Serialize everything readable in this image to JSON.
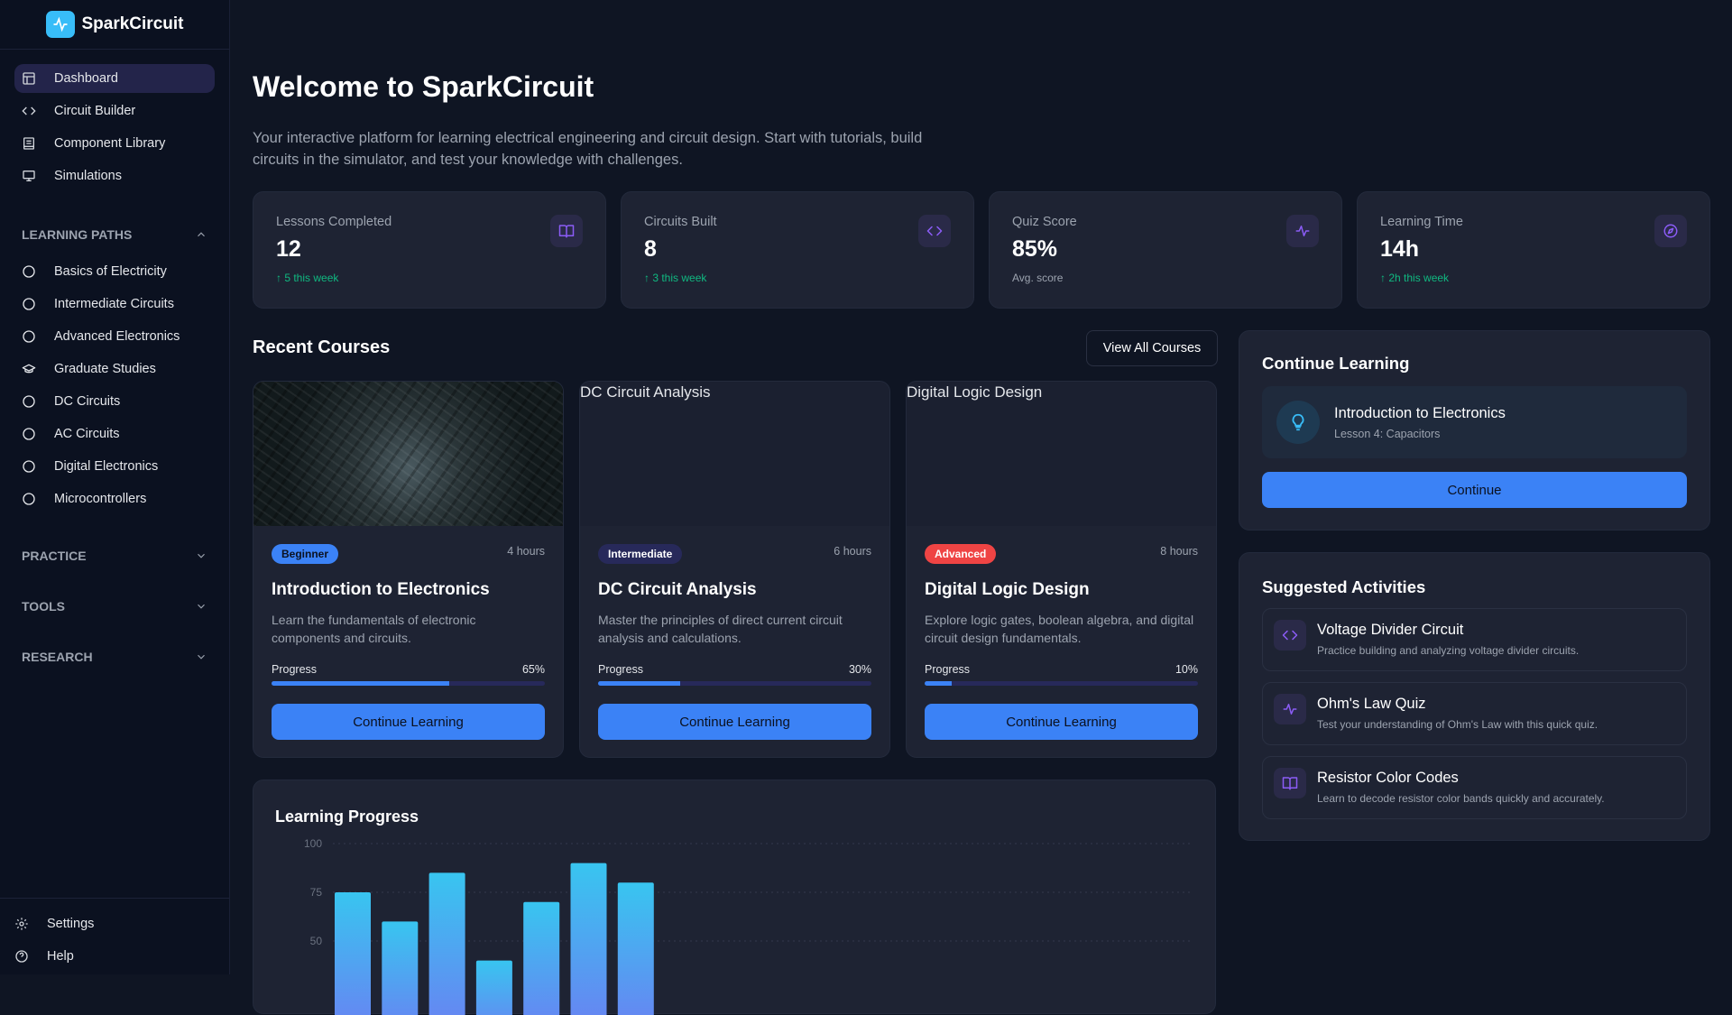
{
  "app": {
    "name": "SparkCircuit"
  },
  "sidebar": {
    "nav": [
      {
        "label": "Dashboard",
        "icon": "layout-icon",
        "active": true
      },
      {
        "label": "Circuit Builder",
        "icon": "code-icon"
      },
      {
        "label": "Component Library",
        "icon": "book-icon"
      },
      {
        "label": "Simulations",
        "icon": "monitor-icon"
      }
    ],
    "learning_paths": {
      "title": "LEARNING PATHS",
      "expanded": true,
      "items": [
        {
          "label": "Basics of Electricity",
          "icon": "circle-icon"
        },
        {
          "label": "Intermediate Circuits",
          "icon": "circle-icon"
        },
        {
          "label": "Advanced Electronics",
          "icon": "circle-icon"
        },
        {
          "label": "Graduate Studies",
          "icon": "graduation-cap-icon"
        },
        {
          "label": "DC Circuits",
          "icon": "circle-icon"
        },
        {
          "label": "AC Circuits",
          "icon": "circle-icon"
        },
        {
          "label": "Digital Electronics",
          "icon": "circle-icon"
        },
        {
          "label": "Microcontrollers",
          "icon": "circle-icon"
        }
      ]
    },
    "sections": [
      {
        "title": "PRACTICE",
        "expanded": false
      },
      {
        "title": "TOOLS",
        "expanded": false
      },
      {
        "title": "RESEARCH",
        "expanded": false
      }
    ],
    "bottom": [
      {
        "label": "Settings",
        "icon": "gear-icon"
      },
      {
        "label": "Help",
        "icon": "help-circle-icon"
      }
    ]
  },
  "header": {
    "title": "Welcome to SparkCircuit",
    "description": "Your interactive platform for learning electrical engineering and circuit design. Start with tutorials, build circuits in the simulator, and test your knowledge with challenges."
  },
  "stats": [
    {
      "label": "Lessons Completed",
      "value": "12",
      "trend": "5 this week",
      "trend_up": true,
      "icon": "book-open-icon"
    },
    {
      "label": "Circuits Built",
      "value": "8",
      "trend": "3 this week",
      "trend_up": true,
      "icon": "code-icon"
    },
    {
      "label": "Quiz Score",
      "value": "85%",
      "trend": "Avg. score",
      "trend_up": false,
      "icon": "activity-icon"
    },
    {
      "label": "Learning Time",
      "value": "14h",
      "trend": "2h this week",
      "trend_up": true,
      "icon": "compass-icon"
    }
  ],
  "recent_courses": {
    "title": "Recent Courses",
    "view_all": "View All Courses",
    "courses": [
      {
        "image_alt": "Introduction to Electronics",
        "level": "Beginner",
        "level_color": "#3b82f6",
        "level_text_color": "#0b1120",
        "duration": "4 hours",
        "title": "Introduction to Electronics",
        "description": "Learn the fundamentals of electronic components and circuits.",
        "progress_label": "Progress",
        "progress": 65,
        "progress_text": "65%",
        "button": "Continue Learning"
      },
      {
        "image_alt": "DC Circuit Analysis",
        "level": "Intermediate",
        "level_color": "#27295a",
        "level_text_color": "#ffffff",
        "duration": "6 hours",
        "title": "DC Circuit Analysis",
        "description": "Master the principles of direct current circuit analysis and calculations.",
        "progress_label": "Progress",
        "progress": 30,
        "progress_text": "30%",
        "button": "Continue Learning"
      },
      {
        "image_alt": "Digital Logic Design",
        "level": "Advanced",
        "level_color": "#ef4444",
        "level_text_color": "#ffffff",
        "duration": "8 hours",
        "title": "Digital Logic Design",
        "description": "Explore logic gates, boolean algebra, and digital circuit design fundamentals.",
        "progress_label": "Progress",
        "progress": 10,
        "progress_text": "10%",
        "button": "Continue Learning"
      }
    ]
  },
  "continue_learning": {
    "title": "Continue Learning",
    "course": "Introduction to Electronics",
    "lesson": "Lesson 4: Capacitors",
    "icon": "lightbulb-icon",
    "button": "Continue"
  },
  "suggested": {
    "title": "Suggested Activities",
    "items": [
      {
        "title": "Voltage Divider Circuit",
        "description": "Practice building and analyzing voltage divider circuits.",
        "icon": "code-icon"
      },
      {
        "title": "Ohm's Law Quiz",
        "description": "Test your understanding of Ohm's Law with this quick quiz.",
        "icon": "activity-icon"
      },
      {
        "title": "Resistor Color Codes",
        "description": "Learn to decode resistor color bands quickly and accurately.",
        "icon": "book-open-icon"
      }
    ]
  },
  "chart_data": {
    "type": "bar",
    "title": "Learning Progress",
    "values": [
      75,
      60,
      85,
      40,
      70,
      90,
      80
    ],
    "yticks": [
      "100",
      "75",
      "50"
    ],
    "ylim": [
      0,
      100
    ],
    "grid": true,
    "bar_gradient": [
      "#38c5f0",
      "#6b7ff2"
    ]
  }
}
